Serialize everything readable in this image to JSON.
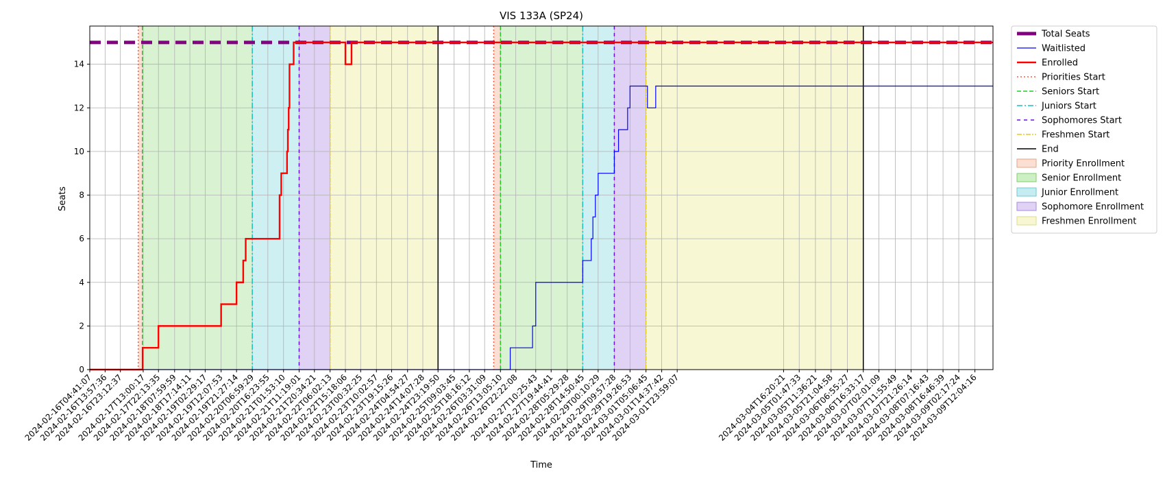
{
  "chart_data": {
    "type": "line",
    "title": "VIS 133A (SP24)",
    "xlabel": "Time",
    "ylabel": "Seats",
    "ylim": [
      0,
      15.75
    ],
    "xlim": [
      "2024-02-16T04:41:07",
      "2024-03-09T23:00:00"
    ],
    "yticks": [
      0,
      2,
      4,
      6,
      8,
      10,
      12,
      14
    ],
    "grid": true,
    "legend_position": "outside-right",
    "xticks": [
      "2024-02-16T04:41:07",
      "2024-02-16T13:57:36",
      "2024-02-16T23:12:37",
      "2024-02-17T13:00:17",
      "2024-02-17T22:13:35",
      "2024-02-18T07:59:59",
      "2024-02-18T17:14:11",
      "2024-02-19T02:29:17",
      "2024-02-19T12:07:53",
      "2024-02-19T21:27:14",
      "2024-02-20T06:59:29",
      "2024-02-20T16:23:55",
      "2024-02-21T01:53:10",
      "2024-02-21T11:19:01",
      "2024-02-21T20:34:21",
      "2024-02-22T06:02:13",
      "2024-02-22T15:18:06",
      "2024-02-23T00:32:25",
      "2024-02-23T10:02:57",
      "2024-02-23T19:15:26",
      "2024-02-24T04:54:27",
      "2024-02-24T14:07:28",
      "2024-02-24T23:19:50",
      "2024-02-25T09:03:45",
      "2024-02-25T18:16:12",
      "2024-02-26T03:31:09",
      "2024-02-26T13:05:10",
      "2024-02-26T22:22:08",
      "2024-02-27T10:25:43",
      "2024-02-27T19:44:41",
      "2024-02-28T05:29:28",
      "2024-02-28T14:50:45",
      "2024-02-29T00:10:29",
      "2024-02-29T09:57:28",
      "2024-02-29T19:26:53",
      "2024-03-01T05:06:45",
      "2024-03-01T14:37:42",
      "2024-03-01T23:59:07",
      "2024-03-04T16:20:21",
      "2024-03-05T01:47:33",
      "2024-03-05T11:36:21",
      "2024-03-05T21:04:58",
      "2024-03-06T06:55:27",
      "2024-03-06T16:33:17",
      "2024-03-07T02:01:09",
      "2024-03-07T11:55:49",
      "2024-03-07T21:26:14",
      "2024-03-08T07:16:43",
      "2024-03-08T16:46:39",
      "2024-03-09T02:17:24",
      "2024-03-09T12:04:16"
    ],
    "periods": [
      {
        "name": "Priority Enrollment",
        "color": "#f4b89c",
        "opacity": 0.45,
        "segments": [
          [
            "2024-02-17T10:00:00",
            "2024-02-17T12:30:00"
          ],
          [
            "2024-02-26T09:00:00",
            "2024-02-26T13:05:10"
          ]
        ]
      },
      {
        "name": "Senior Enrollment",
        "color": "#8fdd7a",
        "opacity": 0.34,
        "segments": [
          [
            "2024-02-17T12:30:00",
            "2024-02-20T06:59:29"
          ],
          [
            "2024-02-26T13:05:10",
            "2024-02-28T14:50:45"
          ]
        ]
      },
      {
        "name": "Junior Enrollment",
        "color": "#7ed8e0",
        "opacity": 0.38,
        "segments": [
          [
            "2024-02-20T06:59:29",
            "2024-02-21T11:19:01"
          ],
          [
            "2024-02-28T14:50:45",
            "2024-02-29T09:57:28"
          ]
        ]
      },
      {
        "name": "Sophomore Enrollment",
        "color": "#b79ce8",
        "opacity": 0.45,
        "segments": [
          [
            "2024-02-21T11:19:01",
            "2024-02-22T06:02:13"
          ],
          [
            "2024-02-29T09:57:28",
            "2024-03-01T05:06:45"
          ]
        ]
      },
      {
        "name": "Freshmen Enrollment",
        "color": "#eeeea0",
        "opacity": 0.45,
        "segments": [
          [
            "2024-02-22T06:02:13",
            "2024-02-24T23:19:50"
          ],
          [
            "2024-03-01T05:06:45",
            "2024-03-06T16:33:17"
          ]
        ]
      }
    ],
    "markers": [
      {
        "name": "Priorities Start",
        "color": "#ff5a3c",
        "dash": "2,3",
        "x": [
          "2024-02-17T10:00:00",
          "2024-02-26T09:00:00"
        ]
      },
      {
        "name": "Seniors Start",
        "color": "#22cc22",
        "dash": "6,3",
        "x": [
          "2024-02-17T12:30:00",
          "2024-02-26T13:05:10"
        ]
      },
      {
        "name": "Juniors Start",
        "color": "#15bfc4",
        "dash": "8,3,2,3",
        "x": [
          "2024-02-20T06:59:29",
          "2024-02-28T14:50:45"
        ]
      },
      {
        "name": "Sophomores Start",
        "color": "#6a10d8",
        "dash": "5,5",
        "x": [
          "2024-02-21T11:19:01",
          "2024-02-29T09:57:28"
        ]
      },
      {
        "name": "Freshmen Start",
        "color": "#e4cc22",
        "dash": "7,2,2,2",
        "x": [
          "2024-02-22T06:02:13",
          "2024-03-01T05:06:45"
        ]
      },
      {
        "name": "End",
        "color": "#000000",
        "dash": "",
        "x": [
          "2024-02-24T23:19:50",
          "2024-03-06T16:33:17"
        ]
      }
    ],
    "series": [
      {
        "name": "Total Seats",
        "color": "#800080",
        "width": 5,
        "dash": "16,9",
        "points": [
          [
            "2024-02-16T04:41:07",
            15
          ],
          [
            "2024-03-09T23:00:00",
            15
          ]
        ]
      },
      {
        "name": "Waitlisted",
        "color": "#0000ff",
        "width": 1.2,
        "dash": "",
        "points": [
          [
            "2024-02-16T04:41:07",
            0
          ],
          [
            "2024-02-26T19:00:00",
            0
          ],
          [
            "2024-02-26T19:00:00",
            1
          ],
          [
            "2024-02-27T08:30:00",
            1
          ],
          [
            "2024-02-27T08:30:00",
            2
          ],
          [
            "2024-02-27T10:25:43",
            2
          ],
          [
            "2024-02-27T10:25:43",
            4
          ],
          [
            "2024-02-28T14:50:45",
            4
          ],
          [
            "2024-02-28T14:50:45",
            5
          ],
          [
            "2024-02-28T20:00:00",
            5
          ],
          [
            "2024-02-28T20:00:00",
            6
          ],
          [
            "2024-02-28T21:00:00",
            6
          ],
          [
            "2024-02-28T21:00:00",
            7
          ],
          [
            "2024-02-28T22:30:00",
            7
          ],
          [
            "2024-02-28T22:30:00",
            8
          ],
          [
            "2024-02-29T00:10:29",
            8
          ],
          [
            "2024-02-29T00:10:29",
            9
          ],
          [
            "2024-02-29T09:57:28",
            9
          ],
          [
            "2024-02-29T09:57:28",
            10
          ],
          [
            "2024-02-29T12:30:00",
            10
          ],
          [
            "2024-02-29T12:30:00",
            11
          ],
          [
            "2024-02-29T18:00:00",
            11
          ],
          [
            "2024-02-29T18:00:00",
            12
          ],
          [
            "2024-02-29T19:26:53",
            12
          ],
          [
            "2024-02-29T19:26:53",
            13
          ],
          [
            "2024-03-01T06:00:00",
            13
          ],
          [
            "2024-03-01T06:00:00",
            12
          ],
          [
            "2024-03-01T11:00:00",
            12
          ],
          [
            "2024-03-01T11:00:00",
            13
          ],
          [
            "2024-03-09T23:00:00",
            13
          ]
        ]
      },
      {
        "name": "Enrolled",
        "color": "#ff0000",
        "width": 2.4,
        "dash": "",
        "points": [
          [
            "2024-02-16T04:41:07",
            0
          ],
          [
            "2024-02-17T12:40:00",
            0
          ],
          [
            "2024-02-17T12:40:00",
            1
          ],
          [
            "2024-02-17T22:13:35",
            1
          ],
          [
            "2024-02-17T22:13:35",
            2
          ],
          [
            "2024-02-19T12:07:53",
            2
          ],
          [
            "2024-02-19T12:07:53",
            3
          ],
          [
            "2024-02-19T21:27:14",
            3
          ],
          [
            "2024-02-19T21:27:14",
            4
          ],
          [
            "2024-02-20T01:30:00",
            4
          ],
          [
            "2024-02-20T01:30:00",
            5
          ],
          [
            "2024-02-20T03:00:00",
            5
          ],
          [
            "2024-02-20T03:00:00",
            6
          ],
          [
            "2024-02-20T23:30:00",
            6
          ],
          [
            "2024-02-20T23:30:00",
            8
          ],
          [
            "2024-02-21T00:30:00",
            8
          ],
          [
            "2024-02-21T00:30:00",
            9
          ],
          [
            "2024-02-21T04:00:00",
            9
          ],
          [
            "2024-02-21T04:00:00",
            10
          ],
          [
            "2024-02-21T04:30:00",
            10
          ],
          [
            "2024-02-21T04:30:00",
            11
          ],
          [
            "2024-02-21T05:00:00",
            11
          ],
          [
            "2024-02-21T05:00:00",
            12
          ],
          [
            "2024-02-21T05:30:00",
            12
          ],
          [
            "2024-02-21T05:30:00",
            14
          ],
          [
            "2024-02-21T08:00:00",
            14
          ],
          [
            "2024-02-21T08:00:00",
            15
          ],
          [
            "2024-02-22T15:18:06",
            15
          ],
          [
            "2024-02-22T15:18:06",
            14
          ],
          [
            "2024-02-22T19:00:00",
            14
          ],
          [
            "2024-02-22T19:00:00",
            15
          ],
          [
            "2024-03-09T23:00:00",
            15
          ]
        ]
      }
    ],
    "legend": [
      {
        "label": "Total Seats",
        "kind": "line",
        "color": "#800080",
        "width": 5,
        "dash": ""
      },
      {
        "label": "Waitlisted",
        "kind": "line",
        "color": "#0000ff",
        "width": 1.2,
        "dash": ""
      },
      {
        "label": "Enrolled",
        "kind": "line",
        "color": "#ff0000",
        "width": 2.4,
        "dash": ""
      },
      {
        "label": "Priorities Start",
        "kind": "line",
        "color": "#ff5a3c",
        "width": 1.5,
        "dash": "2,3"
      },
      {
        "label": "Seniors Start",
        "kind": "line",
        "color": "#22cc22",
        "width": 1.5,
        "dash": "6,3"
      },
      {
        "label": "Juniors Start",
        "kind": "line",
        "color": "#15bfc4",
        "width": 1.5,
        "dash": "8,3,2,3"
      },
      {
        "label": "Sophomores Start",
        "kind": "line",
        "color": "#6a10d8",
        "width": 1.5,
        "dash": "5,5"
      },
      {
        "label": "Freshmen Start",
        "kind": "line",
        "color": "#e4cc22",
        "width": 1.5,
        "dash": "7,2,2,2"
      },
      {
        "label": "End",
        "kind": "line",
        "color": "#000000",
        "width": 1.5,
        "dash": ""
      },
      {
        "label": "Priority Enrollment",
        "kind": "patch",
        "color": "#f4b89c",
        "edge": "#e7a58a"
      },
      {
        "label": "Senior Enrollment",
        "kind": "patch",
        "color": "#8fdd7a",
        "edge": "#7fcf6a"
      },
      {
        "label": "Junior Enrollment",
        "kind": "patch",
        "color": "#7ed8e0",
        "edge": "#6dcad3"
      },
      {
        "label": "Sophomore Enrollment",
        "kind": "patch",
        "color": "#b79ce8",
        "edge": "#a88bde"
      },
      {
        "label": "Freshmen Enrollment",
        "kind": "patch",
        "color": "#eeeea0",
        "edge": "#dcdc8a"
      }
    ]
  }
}
